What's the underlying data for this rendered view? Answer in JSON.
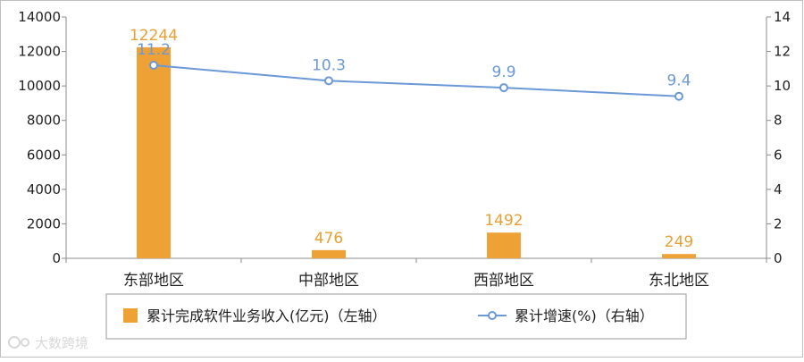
{
  "chart_data": {
    "type": "bar+line",
    "categories": [
      "东部地区",
      "中部地区",
      "西部地区",
      "东北地区"
    ],
    "series": [
      {
        "name": "累计完成软件业务收入(亿元)（左轴）",
        "type": "bar",
        "axis": "left",
        "values": [
          12244,
          476,
          1492,
          249
        ],
        "labels": [
          "12244",
          "476",
          "1492",
          "249"
        ]
      },
      {
        "name": "累计增速(%)（右轴）",
        "type": "line",
        "axis": "right",
        "values": [
          11.2,
          10.3,
          9.9,
          9.4
        ],
        "labels": [
          "11.2",
          "10.3",
          "9.9",
          "9.4"
        ]
      }
    ],
    "left_axis": {
      "ylim": [
        0,
        14000
      ],
      "ticks": [
        0,
        2000,
        4000,
        6000,
        8000,
        10000,
        12000,
        14000
      ],
      "tick_labels": [
        "0",
        "2000",
        "4000",
        "6000",
        "8000",
        "10000",
        "12000",
        "14000"
      ]
    },
    "right_axis": {
      "ylim": [
        0,
        14
      ],
      "ticks": [
        0,
        2,
        4,
        6,
        8,
        10,
        12,
        14
      ],
      "tick_labels": [
        "0",
        "2",
        "4",
        "6",
        "8",
        "10",
        "12",
        "14"
      ]
    },
    "grid": false,
    "legend_position": "bottom",
    "colors": {
      "bar": "#eea236",
      "line": "#6b98d6",
      "marker_fill": "#ffffff"
    }
  },
  "watermark": {
    "text": "大数跨境",
    "icon": "brand-logo-icon"
  }
}
